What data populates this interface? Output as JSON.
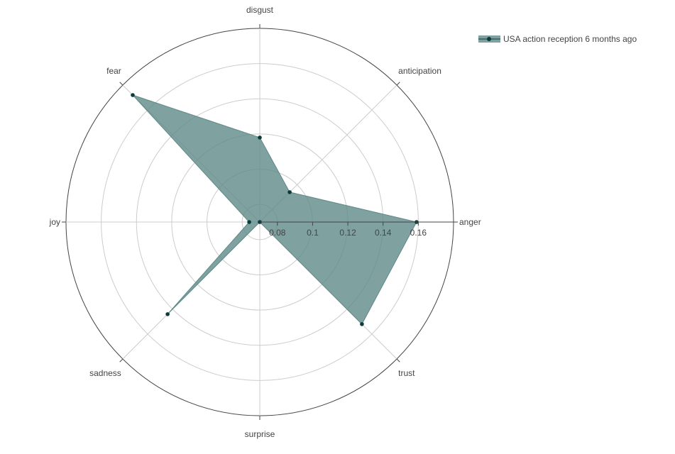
{
  "chart_data": {
    "type": "radar",
    "categories": [
      "anger",
      "anticipation",
      "disgust",
      "fear",
      "joy",
      "sadness",
      "surprise",
      "trust"
    ],
    "series": [
      {
        "name": "USA action reception 6 months ago",
        "values": [
          0.159,
          0.094,
          0.118,
          0.172,
          0.076,
          0.144,
          0.07,
          0.152
        ]
      }
    ],
    "radial_range": [
      0.07,
      0.18
    ],
    "radial_ticks": [
      0.08,
      0.1,
      0.12,
      0.14,
      0.16
    ],
    "radial_tick_labels": [
      "0.08",
      "0.1",
      "0.12",
      "0.14",
      "0.16"
    ],
    "grid": true,
    "legend_position": "top-right",
    "colors": {
      "fill": "#5f8a88",
      "marker": "#0d3b3b",
      "grid": "#cccccc",
      "outer_circle": "#444444"
    }
  }
}
